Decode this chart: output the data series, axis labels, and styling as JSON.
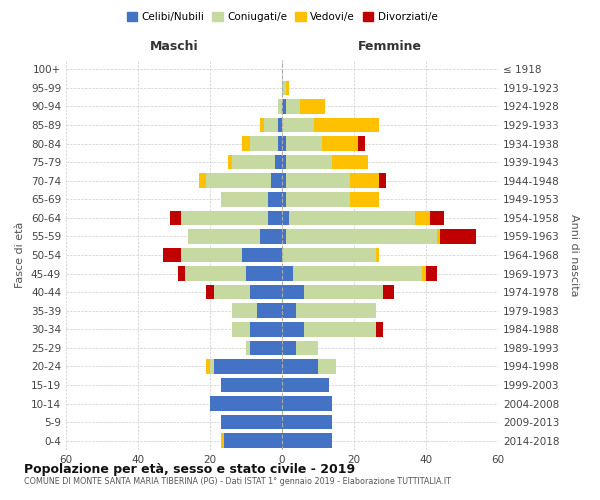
{
  "age_groups": [
    "0-4",
    "5-9",
    "10-14",
    "15-19",
    "20-24",
    "25-29",
    "30-34",
    "35-39",
    "40-44",
    "45-49",
    "50-54",
    "55-59",
    "60-64",
    "65-69",
    "70-74",
    "75-79",
    "80-84",
    "85-89",
    "90-94",
    "95-99",
    "100+"
  ],
  "birth_years": [
    "2014-2018",
    "2009-2013",
    "2004-2008",
    "1999-2003",
    "1994-1998",
    "1989-1993",
    "1984-1988",
    "1979-1983",
    "1974-1978",
    "1969-1973",
    "1964-1968",
    "1959-1963",
    "1954-1958",
    "1949-1953",
    "1944-1948",
    "1939-1943",
    "1934-1938",
    "1929-1933",
    "1924-1928",
    "1919-1923",
    "≤ 1918"
  ],
  "colors": {
    "celibe": "#4472c4",
    "coniugato": "#c5d9a0",
    "vedovo": "#ffc000",
    "divorziato": "#c00000"
  },
  "maschi": {
    "celibe": [
      16,
      17,
      20,
      17,
      19,
      9,
      9,
      7,
      9,
      10,
      11,
      6,
      4,
      4,
      3,
      2,
      1,
      1,
      0,
      0,
      0
    ],
    "coniugato": [
      0,
      0,
      0,
      0,
      1,
      1,
      5,
      7,
      10,
      17,
      17,
      20,
      24,
      13,
      18,
      12,
      8,
      4,
      1,
      0,
      0
    ],
    "vedovo": [
      1,
      0,
      0,
      0,
      1,
      0,
      0,
      0,
      0,
      0,
      0,
      0,
      0,
      0,
      2,
      1,
      2,
      1,
      0,
      0,
      0
    ],
    "divorziato": [
      0,
      0,
      0,
      0,
      0,
      0,
      0,
      0,
      2,
      2,
      5,
      0,
      3,
      0,
      0,
      0,
      0,
      0,
      0,
      0,
      0
    ]
  },
  "femmine": {
    "celibe": [
      14,
      14,
      14,
      13,
      10,
      4,
      6,
      4,
      6,
      3,
      0,
      1,
      2,
      1,
      1,
      1,
      1,
      0,
      1,
      0,
      0
    ],
    "coniugato": [
      0,
      0,
      0,
      0,
      5,
      6,
      20,
      22,
      22,
      36,
      26,
      42,
      35,
      18,
      18,
      13,
      10,
      9,
      4,
      1,
      0
    ],
    "vedovo": [
      0,
      0,
      0,
      0,
      0,
      0,
      0,
      0,
      0,
      1,
      1,
      1,
      4,
      8,
      8,
      10,
      10,
      18,
      7,
      1,
      0
    ],
    "divorziato": [
      0,
      0,
      0,
      0,
      0,
      0,
      2,
      0,
      3,
      3,
      0,
      10,
      4,
      0,
      2,
      0,
      2,
      0,
      0,
      0,
      0
    ]
  },
  "title": "Popolazione per età, sesso e stato civile - 2019",
  "subtitle": "COMUNE DI MONTE SANTA MARIA TIBERINA (PG) - Dati ISTAT 1° gennaio 2019 - Elaborazione TUTTITALIA.IT",
  "xlabel_left": "Maschi",
  "xlabel_right": "Femmine",
  "ylabel_left": "Fasce di età",
  "ylabel_right": "Anni di nascita",
  "xlim": 60,
  "legend_labels": [
    "Celibi/Nubili",
    "Coniugati/e",
    "Vedovi/e",
    "Divorziati/e"
  ],
  "bg_color": "#ffffff",
  "grid_color": "#cccccc"
}
